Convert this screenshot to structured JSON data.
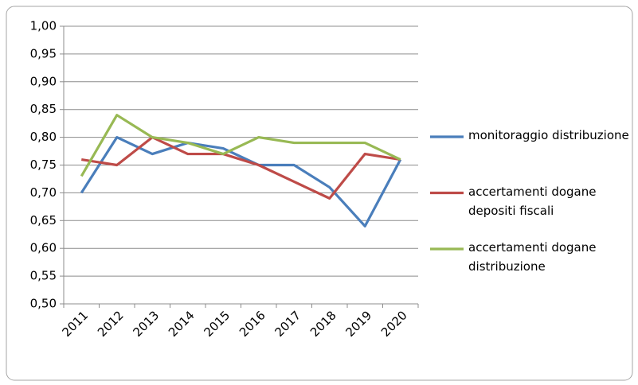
{
  "chart_data": {
    "type": "line",
    "categories": [
      "2011",
      "2012",
      "2013",
      "2014",
      "2015",
      "2016",
      "2017",
      "2018",
      "2019",
      "2020"
    ],
    "series": [
      {
        "name": "monitoraggio distribuzione",
        "color": "#4a7ebb",
        "values": [
          0.7,
          0.8,
          0.77,
          0.79,
          0.78,
          0.75,
          0.75,
          0.71,
          0.64,
          0.76
        ]
      },
      {
        "name": "accertamenti dogane depositi fiscali",
        "color": "#be4b48",
        "values": [
          0.76,
          0.75,
          0.8,
          0.77,
          0.77,
          0.75,
          0.72,
          0.69,
          0.77,
          0.76
        ]
      },
      {
        "name": "accertamenti dogane distribuzione",
        "color": "#98b954",
        "values": [
          0.73,
          0.84,
          0.8,
          0.79,
          0.77,
          0.8,
          0.79,
          0.79,
          0.79,
          0.76
        ]
      }
    ],
    "ylim": [
      0.5,
      1.0
    ],
    "yticks": [
      {
        "value": 0.5,
        "label": "0,50"
      },
      {
        "value": 0.55,
        "label": "0,55"
      },
      {
        "value": 0.6,
        "label": "0,60"
      },
      {
        "value": 0.65,
        "label": "0,65"
      },
      {
        "value": 0.7,
        "label": "0,70"
      },
      {
        "value": 0.75,
        "label": "0,75"
      },
      {
        "value": 0.8,
        "label": "0,80"
      },
      {
        "value": 0.85,
        "label": "0,85"
      },
      {
        "value": 0.9,
        "label": "0,90"
      },
      {
        "value": 0.95,
        "label": "0,95"
      },
      {
        "value": 1.0,
        "label": "1,00"
      }
    ],
    "grid": true
  }
}
